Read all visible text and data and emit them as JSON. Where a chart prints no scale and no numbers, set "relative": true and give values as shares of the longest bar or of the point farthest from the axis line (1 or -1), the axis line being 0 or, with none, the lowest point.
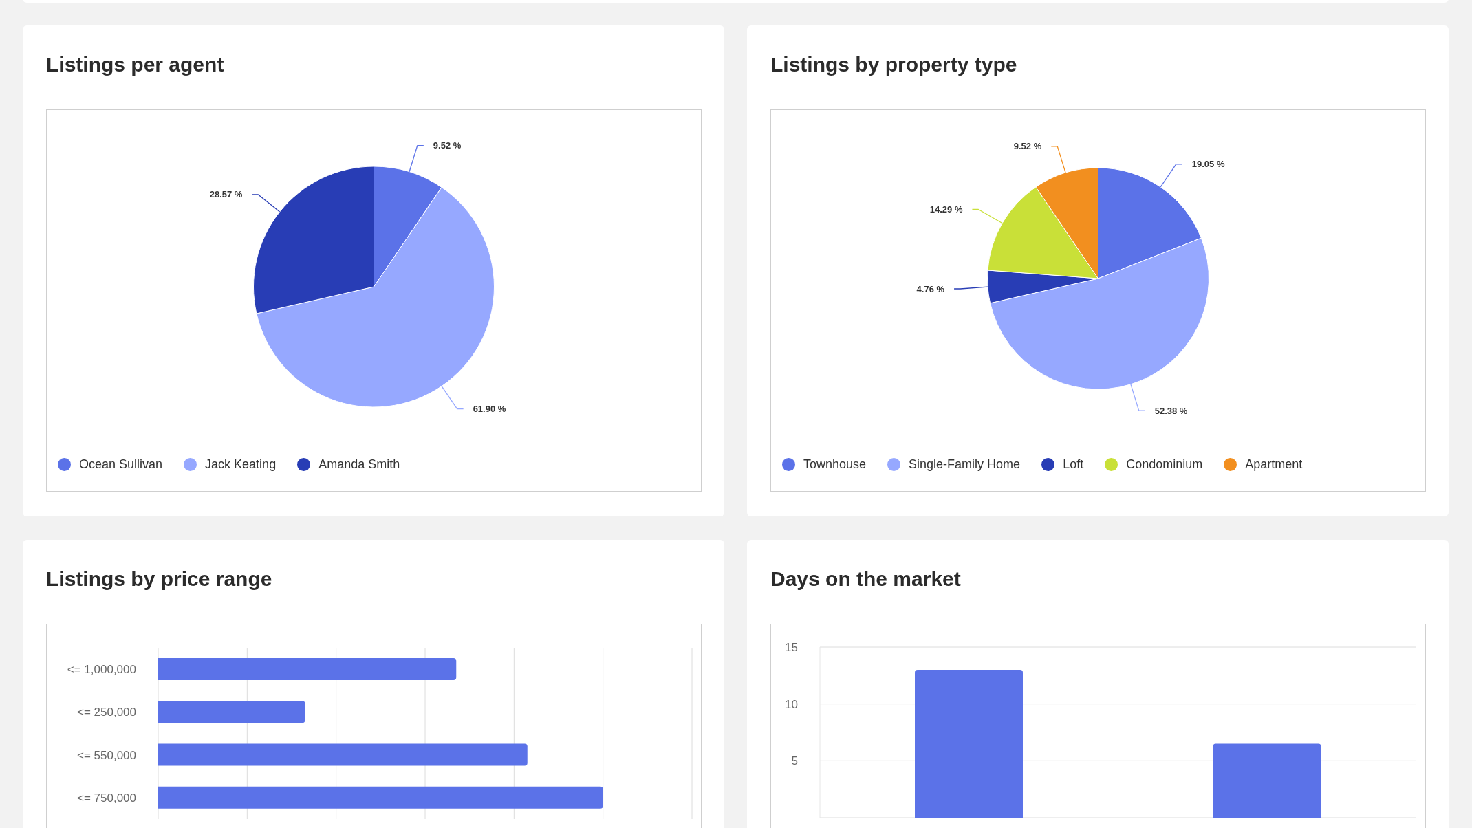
{
  "chart_data": [
    {
      "type": "pie",
      "title": "Listings per agent",
      "categories": [
        "Ocean Sullivan",
        "Jack Keating",
        "Amanda Smith"
      ],
      "values": [
        9.52,
        61.9,
        28.57
      ],
      "colors": [
        "#5b72e8",
        "#96a8ff",
        "#283db5"
      ],
      "value_labels": [
        "9.52 %",
        "61.90 %",
        "28.57 %"
      ],
      "legend": "bottom left"
    },
    {
      "type": "pie",
      "title": "Listings by property type",
      "categories": [
        "Townhouse",
        "Single-Family Home",
        "Loft",
        "Condominium",
        "Apartment"
      ],
      "values": [
        19.05,
        52.38,
        4.76,
        14.29,
        9.52
      ],
      "colors": [
        "#5b72e8",
        "#96a8ff",
        "#283db5",
        "#c9e038",
        "#f28f1f"
      ],
      "value_labels": [
        "19.05 %",
        "52.38 %",
        "4.76 %",
        "14.29 %",
        "9.52 %"
      ],
      "legend": "bottom left"
    },
    {
      "type": "bar",
      "title": "Listings by price range",
      "orientation": "horizontal",
      "categories": [
        "<= 1,000,000",
        "<= 250,000",
        "<= 550,000",
        "<= 750,000"
      ],
      "values": [
        0.67,
        0.33,
        0.83,
        1
      ],
      "color": "#5b72e8",
      "relative": true,
      "grid": "x"
    },
    {
      "type": "bar",
      "title": "Days on the market",
      "categories": [
        null,
        null
      ],
      "values": [
        13,
        6.5
      ],
      "color": "#5b72e8",
      "ylim": [
        0,
        15
      ],
      "yticks": [
        5,
        10,
        15
      ],
      "grid": "y",
      "tick_labels": "y"
    }
  ]
}
